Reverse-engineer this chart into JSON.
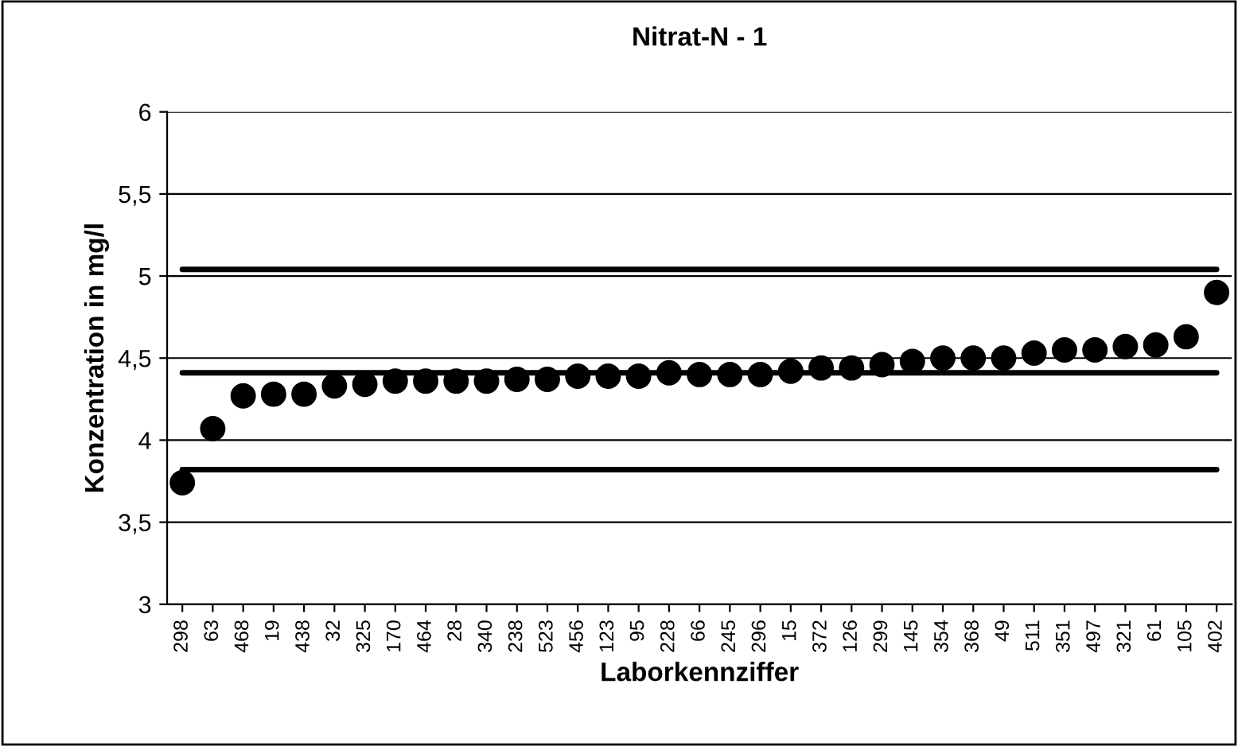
{
  "chart_data": {
    "type": "scatter",
    "title": "Nitrat-N - 1",
    "xlabel": "Laborkennziffer",
    "ylabel": "Konzentration in mg/l",
    "categories": [
      "298",
      "63",
      "468",
      "19",
      "438",
      "32",
      "325",
      "170",
      "464",
      "28",
      "340",
      "238",
      "523",
      "456",
      "123",
      "95",
      "228",
      "66",
      "245",
      "296",
      "15",
      "372",
      "126",
      "299",
      "145",
      "354",
      "368",
      "49",
      "511",
      "351",
      "497",
      "321",
      "61",
      "105",
      "402"
    ],
    "series": [
      {
        "color": "#000000",
        "values": [
          3.74,
          4.07,
          4.27,
          4.28,
          4.28,
          4.33,
          4.34,
          4.36,
          4.36,
          4.36,
          4.36,
          4.37,
          4.37,
          4.39,
          4.39,
          4.39,
          4.41,
          4.4,
          4.4,
          4.4,
          4.42,
          4.44,
          4.44,
          4.46,
          4.48,
          4.5,
          4.5,
          4.5,
          4.53,
          4.55,
          4.55,
          4.57,
          4.58,
          4.63,
          4.9
        ]
      }
    ],
    "ref_lines": [
      {
        "axis": "y",
        "value": 5.04,
        "color": "#000000"
      },
      {
        "axis": "y",
        "value": 4.41,
        "color": "#000000"
      },
      {
        "axis": "y",
        "value": 3.82,
        "color": "#000000"
      }
    ],
    "ylim": [
      3,
      6
    ],
    "yticks": [
      3,
      {
        "value": 3.5,
        "label": "3,5"
      },
      4,
      {
        "value": 4.5,
        "label": "4,5"
      },
      5,
      {
        "value": 5.5,
        "label": "5,5"
      },
      6
    ],
    "grid": "y",
    "marker": "circle",
    "legend": false
  }
}
